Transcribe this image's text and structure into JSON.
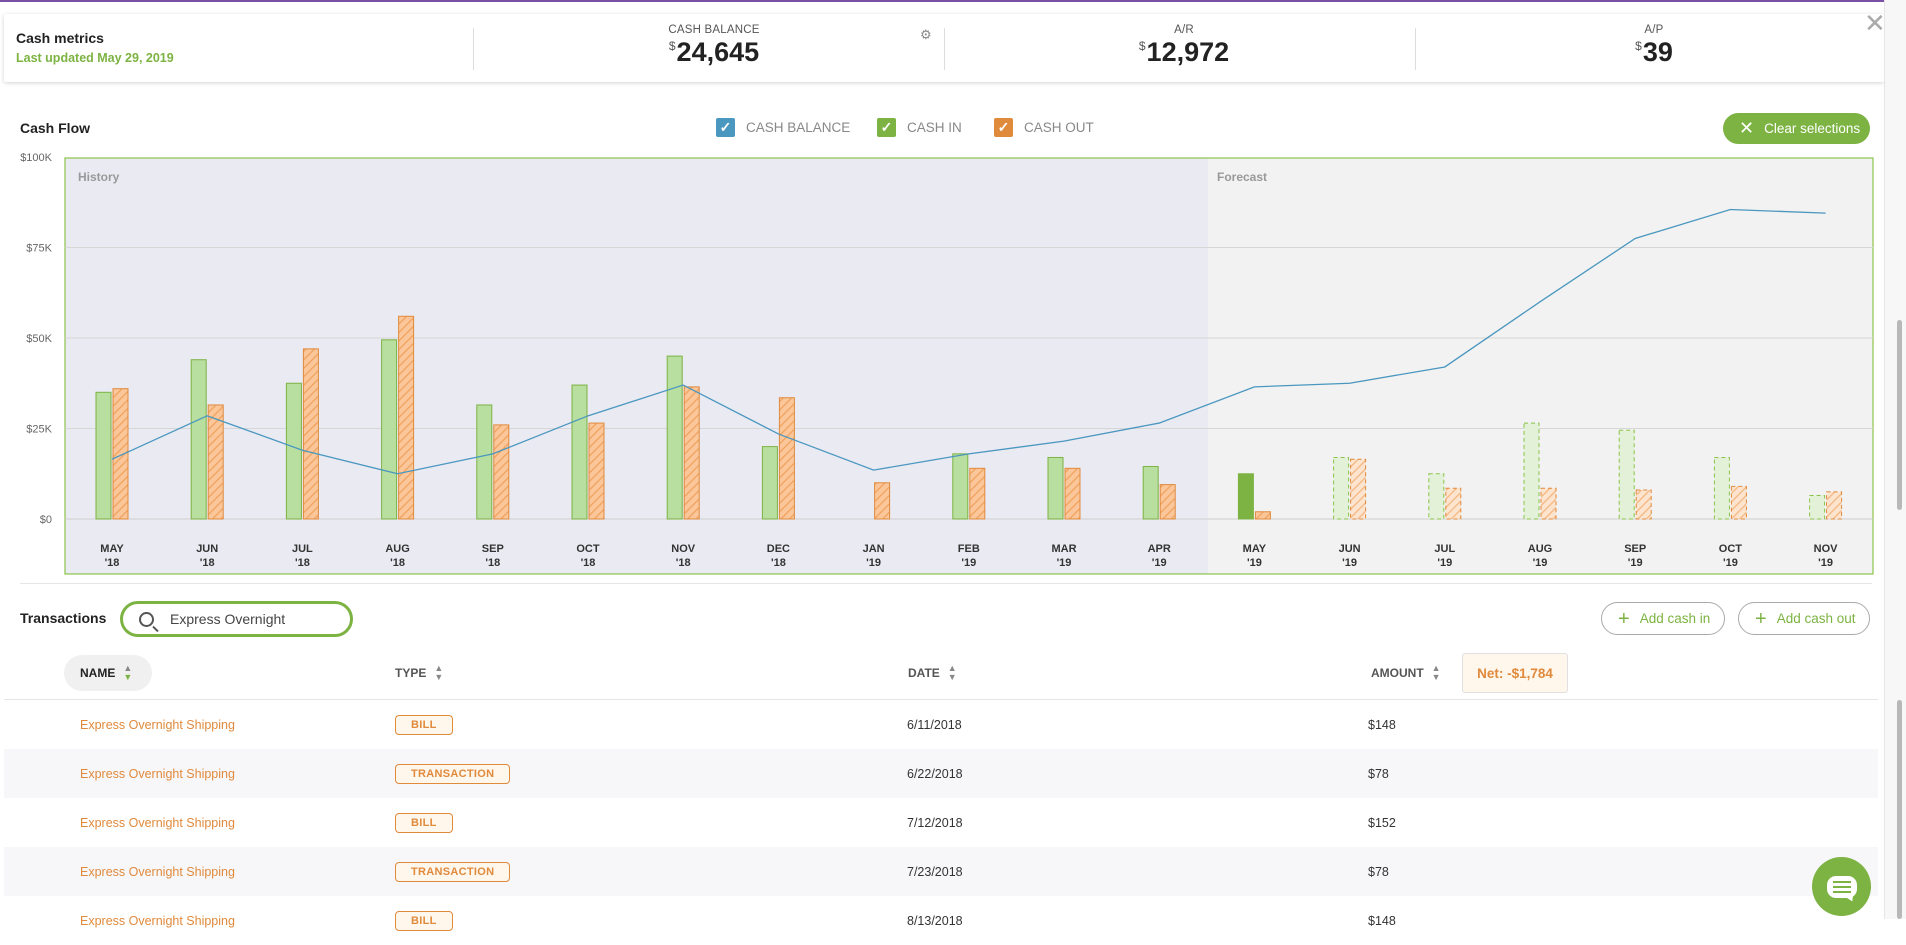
{
  "metrics": {
    "title": "Cash metrics",
    "updated": "Last updated May 29, 2019",
    "currency": "$",
    "cash_balance": {
      "label": "CASH BALANCE",
      "value": "24,645"
    },
    "ar": {
      "label": "A/R",
      "value": "12,972"
    },
    "ap": {
      "label": "A/P",
      "value": "39"
    }
  },
  "cashflow": {
    "title": "Cash Flow",
    "legend": [
      {
        "label": "CASH BALANCE",
        "color": "#4a97bf"
      },
      {
        "label": "CASH IN",
        "color": "#7cb342"
      },
      {
        "label": "CASH OUT",
        "color": "#e08a3c"
      }
    ],
    "clear_label": "Clear selections"
  },
  "chart_data": {
    "type": "bar",
    "regions": {
      "history": "History",
      "forecast": "Forecast"
    },
    "y_ticks": [
      "$100K",
      "$75K",
      "$50K",
      "$25K",
      "$0"
    ],
    "ylim": [
      0,
      100000
    ],
    "categories": [
      [
        "MAY",
        "'18"
      ],
      [
        "JUN",
        "'18"
      ],
      [
        "JUL",
        "'18"
      ],
      [
        "AUG",
        "'18"
      ],
      [
        "SEP",
        "'18"
      ],
      [
        "OCT",
        "'18"
      ],
      [
        "NOV",
        "'18"
      ],
      [
        "DEC",
        "'18"
      ],
      [
        "JAN",
        "'19"
      ],
      [
        "FEB",
        "'19"
      ],
      [
        "MAR",
        "'19"
      ],
      [
        "APR",
        "'19"
      ],
      [
        "MAY",
        "'19"
      ],
      [
        "JUN",
        "'19"
      ],
      [
        "JUL",
        "'19"
      ],
      [
        "AUG",
        "'19"
      ],
      [
        "SEP",
        "'19"
      ],
      [
        "OCT",
        "'19"
      ],
      [
        "NOV",
        "'19"
      ]
    ],
    "history_count": 12,
    "series": [
      {
        "name": "CASH IN",
        "values": [
          35000,
          44000,
          37500,
          49500,
          31500,
          37000,
          45000,
          20000,
          0,
          18000,
          17000,
          14500,
          12500,
          17000,
          12500,
          26500,
          24500,
          17000,
          6500
        ]
      },
      {
        "name": "CASH OUT",
        "values": [
          36000,
          31500,
          47000,
          56000,
          26000,
          26500,
          36500,
          33500,
          10000,
          14000,
          14000,
          9500,
          2000,
          16500,
          8500,
          8500,
          8000,
          9000,
          7500
        ]
      },
      {
        "name": "CASH BALANCE",
        "values": [
          16500,
          28500,
          19000,
          12500,
          18000,
          28500,
          37000,
          23500,
          13500,
          18000,
          21500,
          26500,
          36500,
          37500,
          42000,
          60000,
          77500,
          85500,
          84500
        ]
      }
    ]
  },
  "transactions": {
    "title": "Transactions",
    "search_value": "Express Overnight",
    "add_in": "Add cash in",
    "add_out": "Add cash out",
    "headers": {
      "name": "NAME",
      "type": "TYPE",
      "date": "DATE",
      "amount": "AMOUNT"
    },
    "net": "Net: -$1,784",
    "rows": [
      {
        "name": "Express Overnight Shipping",
        "type": "BILL",
        "date": "6/11/2018",
        "amount": "$148"
      },
      {
        "name": "Express Overnight Shipping",
        "type": "TRANSACTION",
        "date": "6/22/2018",
        "amount": "$78"
      },
      {
        "name": "Express Overnight Shipping",
        "type": "BILL",
        "date": "7/12/2018",
        "amount": "$152"
      },
      {
        "name": "Express Overnight Shipping",
        "type": "TRANSACTION",
        "date": "7/23/2018",
        "amount": "$78"
      },
      {
        "name": "Express Overnight Shipping",
        "type": "BILL",
        "date": "8/13/2018",
        "amount": "$148"
      }
    ]
  }
}
